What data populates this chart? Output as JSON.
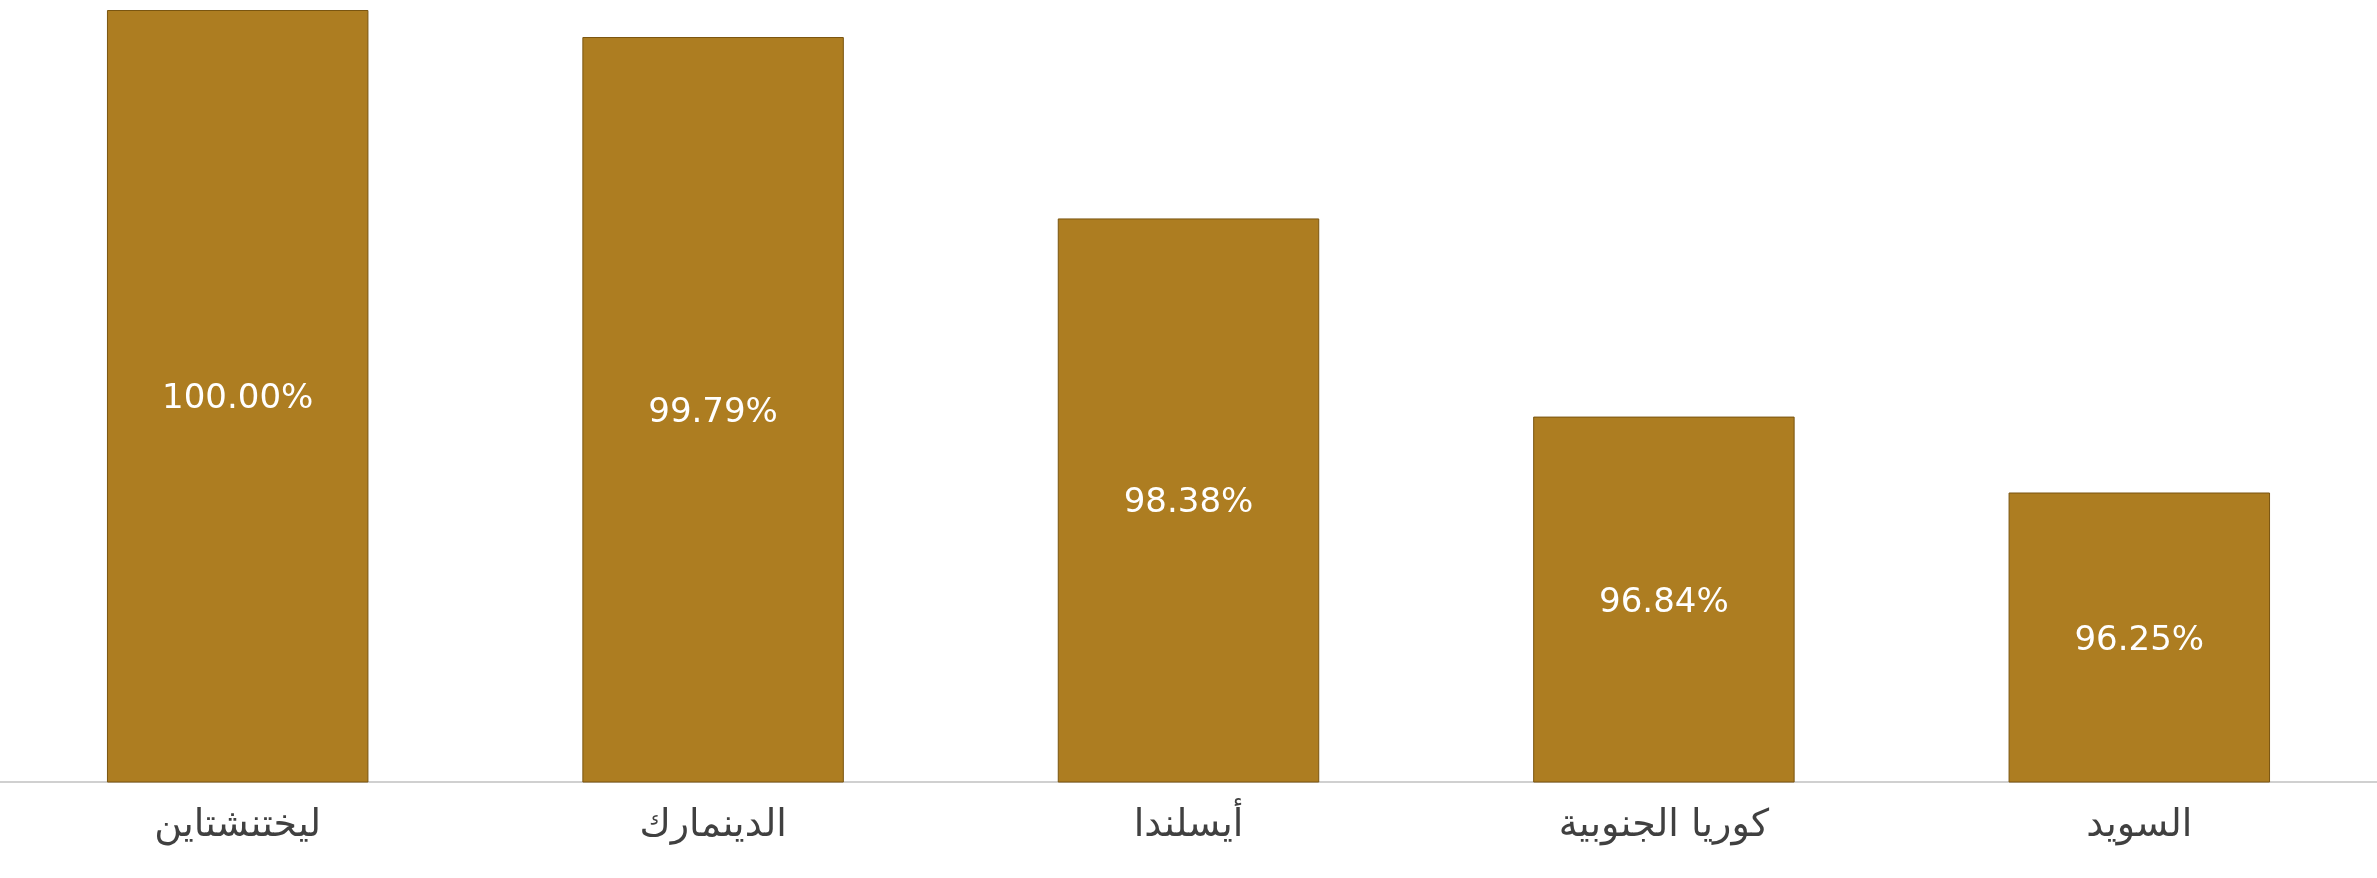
{
  "chart_data": {
    "type": "bar",
    "categories": [
      "ليختنشتاين",
      "الدينمارك",
      "أيسلندا",
      "كوريا الجنوبية",
      "السويد"
    ],
    "values": [
      100,
      99.79,
      98.38,
      96.84,
      96.25
    ],
    "value_labels": [
      "100.00%",
      "99.79%",
      "98.38%",
      "96.84%",
      "96.25%"
    ],
    "color": "#ad7d21",
    "ylim": [
      94,
      100
    ]
  }
}
